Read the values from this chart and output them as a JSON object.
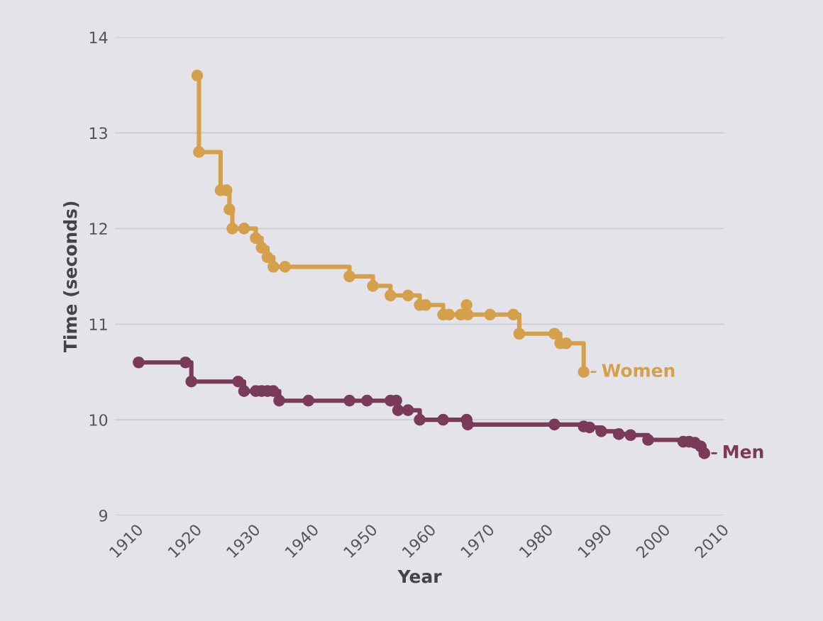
{
  "chart_data": {
    "type": "step",
    "xlabel": "Year",
    "ylabel": "Time (seconds)",
    "xlim": [
      1908,
      2012
    ],
    "xticks": [
      1910,
      1920,
      1930,
      1940,
      1950,
      1960,
      1970,
      1980,
      1990,
      2000,
      2010
    ],
    "ylim": [
      9,
      14
    ],
    "yticks": [
      9,
      10,
      11,
      12,
      13,
      14
    ],
    "grid": "y",
    "legend": "right",
    "marker": "circle",
    "line_style": "solid",
    "series": [
      {
        "name": "Women",
        "color": "#d4a04c",
        "x": [
          1922,
          1922.3,
          1926,
          1927,
          1927.5,
          1928,
          1930,
          1932,
          1933,
          1934,
          1935,
          1937,
          1948,
          1952,
          1955,
          1958,
          1960,
          1961,
          1964,
          1965,
          1967,
          1968,
          1968.2,
          1972,
          1976,
          1977,
          1983,
          1984,
          1985,
          1988
        ],
        "values": [
          13.6,
          12.8,
          12.4,
          12.4,
          12.2,
          12.0,
          12.0,
          11.9,
          11.8,
          11.7,
          11.6,
          11.6,
          11.5,
          11.4,
          11.3,
          11.3,
          11.2,
          11.2,
          11.1,
          11.1,
          11.1,
          11.2,
          11.1,
          11.1,
          11.1,
          10.9,
          10.9,
          10.8,
          10.8,
          10.5
        ]
      },
      {
        "name": "Men",
        "color": "#7a3b5a",
        "x": [
          1912,
          1920,
          1921,
          1929,
          1930,
          1932,
          1933,
          1934,
          1935,
          1936,
          1941,
          1948,
          1951,
          1955,
          1956,
          1956.3,
          1958,
          1960,
          1964,
          1968,
          1968.2,
          1983,
          1988,
          1989,
          1991,
          1994,
          1996,
          1999,
          2005,
          2006,
          2007,
          2008,
          2008.6
        ],
        "values": [
          10.6,
          10.6,
          10.4,
          10.4,
          10.3,
          10.3,
          10.3,
          10.3,
          10.3,
          10.2,
          10.2,
          10.2,
          10.2,
          10.2,
          10.2,
          10.1,
          10.1,
          10.0,
          10.0,
          10.0,
          9.95,
          9.95,
          9.93,
          9.92,
          9.88,
          9.85,
          9.84,
          9.79,
          9.77,
          9.77,
          9.76,
          9.72,
          9.65
        ]
      }
    ]
  }
}
